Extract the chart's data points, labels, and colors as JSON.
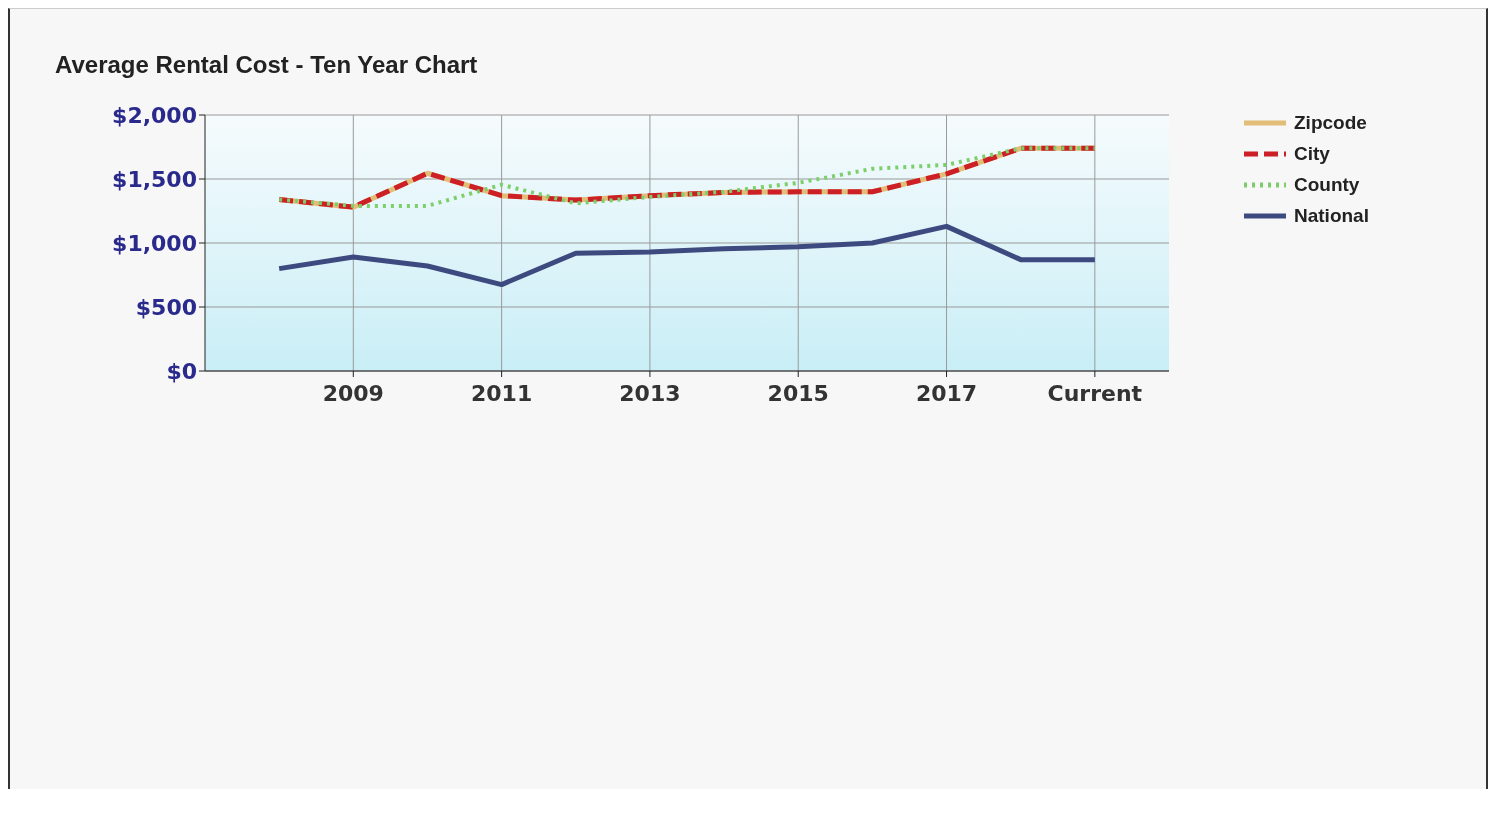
{
  "chart_data": {
    "type": "line",
    "title": "Average Rental Cost - Ten Year Chart",
    "categories": [
      null,
      "2009",
      null,
      "2011",
      null,
      "2013",
      null,
      "2015",
      null,
      "2017",
      null,
      "Current"
    ],
    "series": [
      {
        "name": "Zipcode",
        "color": "#e2bd78",
        "line_style": "solid",
        "values": [
          1340,
          1280,
          1545,
          1370,
          1335,
          1370,
          1395,
          1400,
          1400,
          1540,
          1740,
          1740
        ]
      },
      {
        "name": "City",
        "color": "#cc1f26",
        "line_style": "dashed",
        "values": [
          1340,
          1280,
          1545,
          1370,
          1335,
          1370,
          1395,
          1400,
          1400,
          1540,
          1740,
          1740
        ]
      },
      {
        "name": "County",
        "color": "#7ccf6a",
        "line_style": "dotted",
        "values": [
          1340,
          1290,
          1290,
          1455,
          1310,
          1360,
          1400,
          1470,
          1580,
          1610,
          1740,
          1740
        ]
      },
      {
        "name": "National",
        "color": "#3d4a80",
        "line_style": "solid",
        "values": [
          800,
          890,
          820,
          675,
          920,
          930,
          955,
          970,
          1000,
          1130,
          870,
          870
        ]
      }
    ],
    "ylim": [
      0,
      2000
    ],
    "yticks": [
      {
        "value": 0,
        "label": "$0"
      },
      {
        "value": 500,
        "label": "$500"
      },
      {
        "value": 1000,
        "label": "$1,000"
      },
      {
        "value": 1500,
        "label": "$1,500"
      },
      {
        "value": 2000,
        "label": "$2,000"
      }
    ],
    "grid": true,
    "legend": "top right",
    "marker": "none"
  }
}
